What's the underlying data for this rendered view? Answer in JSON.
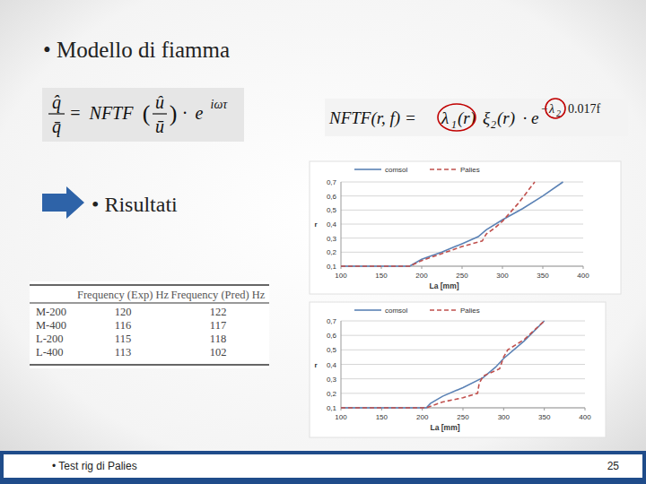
{
  "slide": {
    "title": "• Modello di fiamma",
    "formula_left": {
      "lhs_num": "q̂",
      "lhs_den": "q̄",
      "eq": "=",
      "fn": "NFTF",
      "open": "(",
      "arg_num": "û",
      "arg_den": "ū",
      "close": ")",
      "dot": "·",
      "base": "e",
      "exp": "iωτ"
    },
    "formula_right": {
      "lhs": "NFTF(r, f) =",
      "term1": "λ",
      "term1_sub": "1",
      "term1_arg": "(r)",
      "term2": "ξ",
      "term2_sub": "2",
      "term2_arg": "(r)",
      "dot": "·",
      "base": "e",
      "exp_sign": "−",
      "exp_sym": "λ",
      "exp_sub": "2",
      "exp_rest": "0.017f"
    },
    "subtitle": "• Risultati",
    "table": {
      "header": [
        "Frequency (Exp) Hz",
        "Frequency (Pred) Hz"
      ],
      "rows": [
        [
          "M-200",
          "120",
          "122"
        ],
        [
          "M-400",
          "116",
          "117"
        ],
        [
          "L-200",
          "115",
          "118"
        ],
        [
          "L-400",
          "113",
          "102"
        ]
      ]
    },
    "footer": {
      "text": "• Test rig di Palies",
      "page": "25"
    }
  },
  "chart_data": [
    {
      "type": "line",
      "x_label": "La [mm]",
      "y_label": "r",
      "grid": true,
      "legend": "top",
      "xlim": [
        100,
        400
      ],
      "xticks": [
        100,
        150,
        200,
        250,
        300,
        350,
        400
      ],
      "ylim": [
        0.1,
        0.7
      ],
      "yticks": [
        {
          "value": 0.1,
          "label": "0,1"
        },
        {
          "value": 0.2,
          "label": "0,2"
        },
        {
          "value": 0.3,
          "label": "0,3"
        },
        {
          "value": 0.4,
          "label": "0,4"
        },
        {
          "value": 0.5,
          "label": "0,5"
        },
        {
          "value": 0.6,
          "label": "0,6"
        },
        {
          "value": 0.7,
          "label": "0,7"
        }
      ],
      "series": [
        {
          "name": "comsol",
          "color": "#5b82b5",
          "line_style": "solid",
          "x": [
            100,
            185,
            200,
            225,
            250,
            270,
            280,
            300,
            325,
            350,
            375
          ],
          "values": [
            0.1,
            0.1,
            0.15,
            0.2,
            0.26,
            0.31,
            0.36,
            0.43,
            0.51,
            0.6,
            0.7
          ]
        },
        {
          "name": "Palies",
          "color": "#c0504d",
          "line_style": "dashed",
          "x": [
            100,
            185,
            200,
            225,
            250,
            275,
            280,
            290,
            300,
            320,
            340
          ],
          "values": [
            0.1,
            0.1,
            0.14,
            0.19,
            0.24,
            0.28,
            0.33,
            0.37,
            0.42,
            0.55,
            0.7
          ]
        }
      ]
    },
    {
      "type": "line",
      "x_label": "La [mm]",
      "y_label": "r",
      "grid": true,
      "legend": "top",
      "xlim": [
        100,
        400
      ],
      "xticks": [
        100,
        150,
        200,
        250,
        300,
        350,
        400
      ],
      "ylim": [
        0.1,
        0.7
      ],
      "yticks": [
        {
          "value": 0.1,
          "label": "0,1"
        },
        {
          "value": 0.2,
          "label": "0,2"
        },
        {
          "value": 0.3,
          "label": "0,3"
        },
        {
          "value": 0.4,
          "label": "0,4"
        },
        {
          "value": 0.5,
          "label": "0,5"
        },
        {
          "value": 0.6,
          "label": "0,6"
        },
        {
          "value": 0.7,
          "label": "0,7"
        }
      ],
      "series": [
        {
          "name": "comsol",
          "color": "#5b82b5",
          "line_style": "solid",
          "x": [
            100,
            205,
            210,
            225,
            250,
            275,
            290,
            300,
            325,
            350
          ],
          "values": [
            0.1,
            0.1,
            0.13,
            0.18,
            0.24,
            0.31,
            0.38,
            0.44,
            0.56,
            0.7
          ]
        },
        {
          "name": "Palies",
          "color": "#c0504d",
          "line_style": "dashed",
          "x": [
            100,
            205,
            225,
            250,
            268,
            270,
            275,
            295,
            300,
            305,
            325,
            350
          ],
          "values": [
            0.1,
            0.1,
            0.14,
            0.17,
            0.2,
            0.27,
            0.32,
            0.37,
            0.45,
            0.5,
            0.57,
            0.7
          ]
        }
      ]
    }
  ]
}
